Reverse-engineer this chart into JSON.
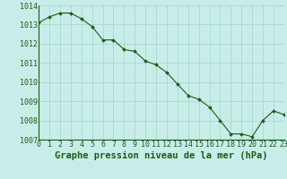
{
  "x": [
    0,
    1,
    2,
    3,
    4,
    5,
    6,
    7,
    8,
    9,
    10,
    11,
    12,
    13,
    14,
    15,
    16,
    17,
    18,
    19,
    20,
    21,
    22,
    23
  ],
  "y": [
    1013.1,
    1013.4,
    1013.6,
    1013.6,
    1013.3,
    1012.9,
    1012.2,
    1012.2,
    1011.7,
    1011.6,
    1011.1,
    1010.9,
    1010.5,
    1009.9,
    1009.3,
    1009.1,
    1008.7,
    1008.0,
    1007.3,
    1007.3,
    1007.15,
    1008.0,
    1008.5,
    1008.3
  ],
  "ylim": [
    1007,
    1014
  ],
  "yticks": [
    1007,
    1008,
    1009,
    1010,
    1011,
    1012,
    1013,
    1014
  ],
  "xticks": [
    0,
    1,
    2,
    3,
    4,
    5,
    6,
    7,
    8,
    9,
    10,
    11,
    12,
    13,
    14,
    15,
    16,
    17,
    18,
    19,
    20,
    21,
    22,
    23
  ],
  "line_color": "#1a5c1a",
  "marker_color": "#1a5c1a",
  "bg_color": "#c8ede8",
  "grid_color": "#a8d8cc",
  "xlabel": "Graphe pression niveau de la mer (hPa)",
  "xlabel_color": "#1a5c1a",
  "tick_color": "#1a5c1a",
  "xlabel_fontsize": 7.5,
  "tick_fontsize": 6.0
}
